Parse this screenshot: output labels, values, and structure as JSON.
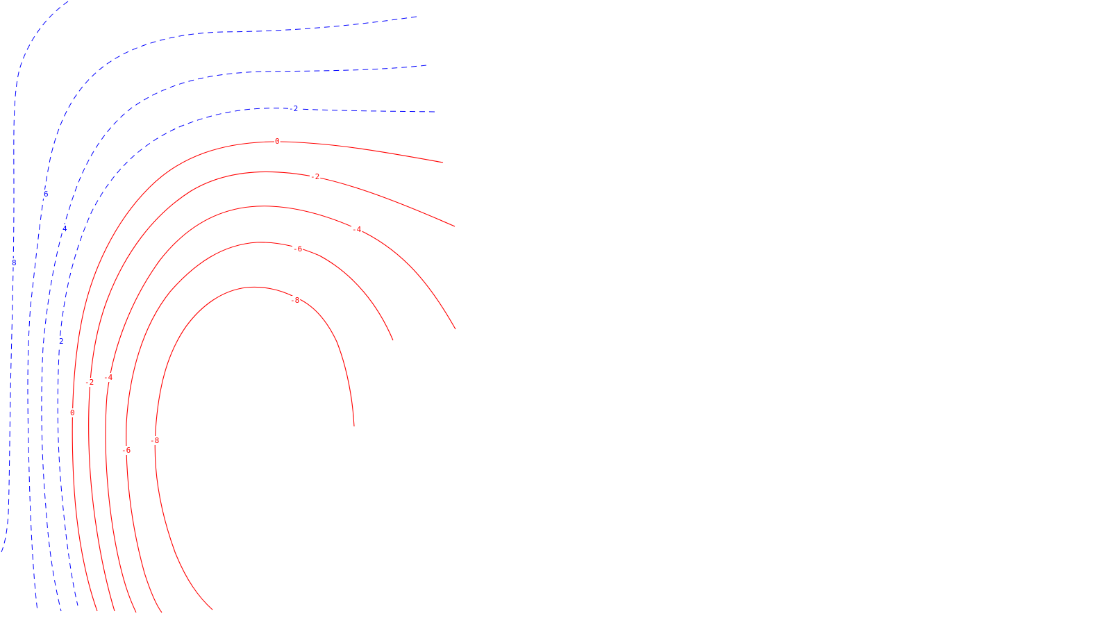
{
  "chart_data": {
    "type": "contour",
    "title": "",
    "xlabel": "",
    "ylabel": "",
    "grid": false,
    "legend": "none",
    "colors": {
      "positive": "#0000ff",
      "negative": "#ff0000"
    },
    "line_styles": {
      "positive": "dashed",
      "negative": "solid"
    },
    "levels": [
      8,
      6,
      4,
      2,
      0,
      -2,
      -4,
      -6,
      -8
    ],
    "level_labels": {
      "blue_left": [
        "8",
        "6",
        "4",
        "2"
      ],
      "blue_top": [
        "-2"
      ],
      "red_top": [
        "0",
        "-2",
        "-4",
        "-6",
        "-8"
      ],
      "red_left": [
        "0",
        "-2",
        "-4",
        "-6",
        "-8"
      ]
    }
  }
}
